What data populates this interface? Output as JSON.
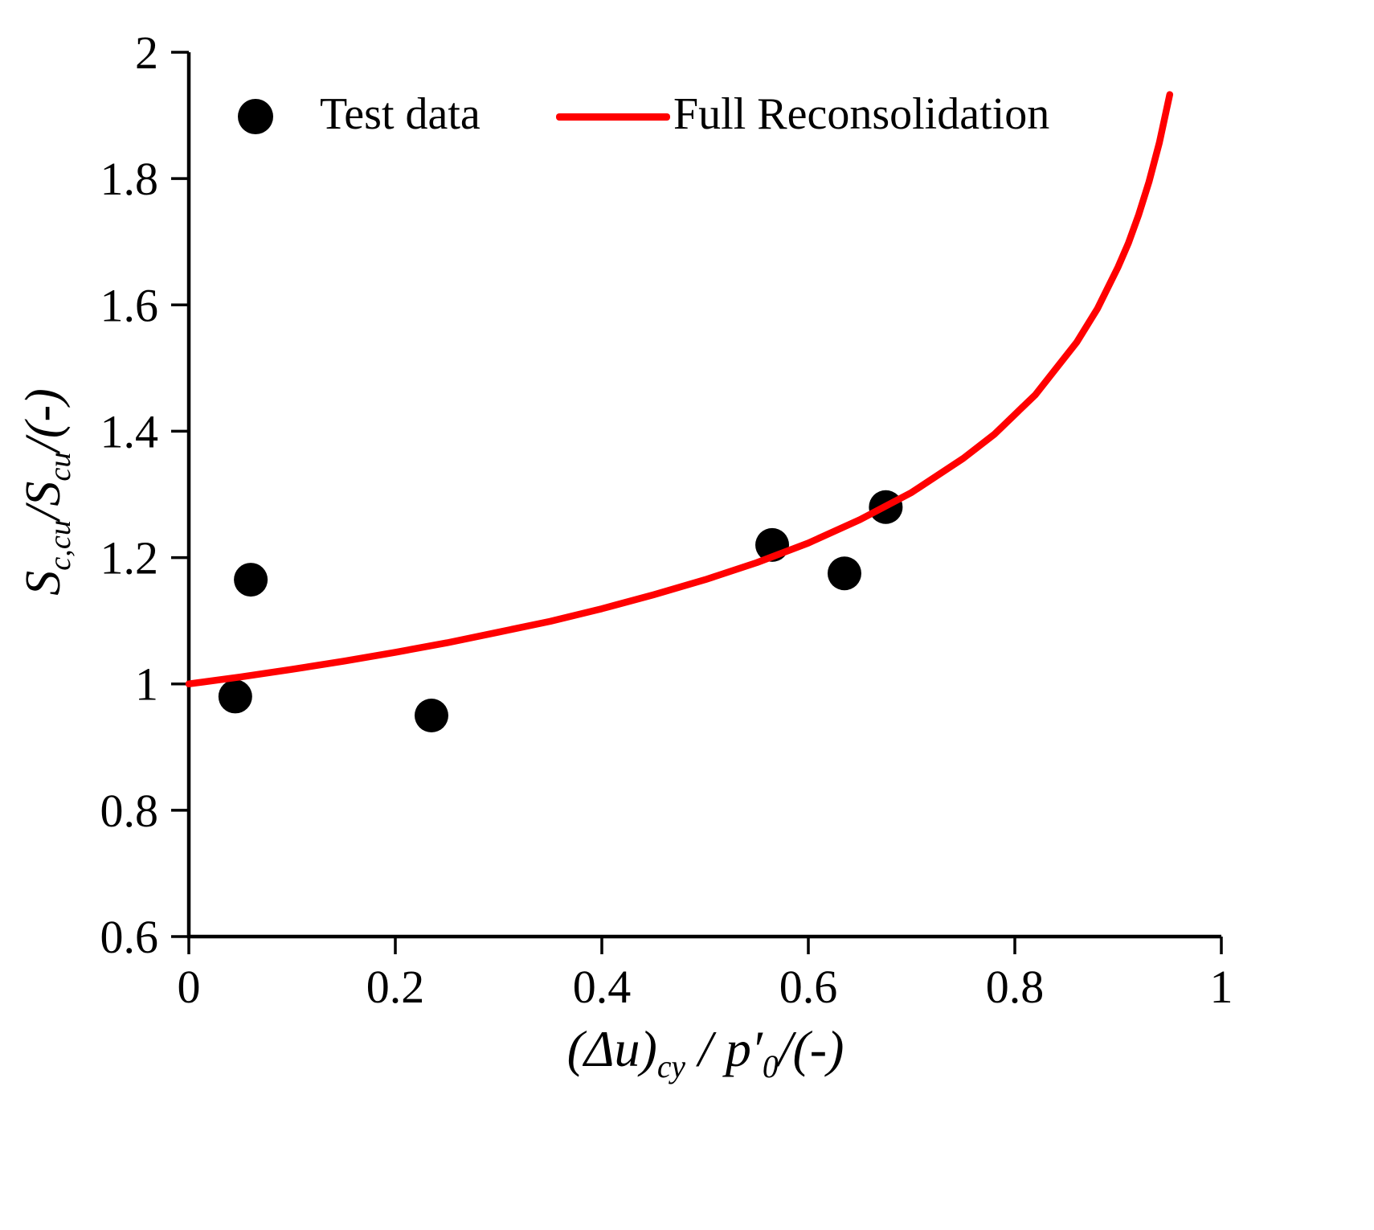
{
  "chart_data": {
    "type": "scatter",
    "title": "",
    "xlabel": "(Δu)_cy / p′0/(-)",
    "ylabel": "S_c,cu/S_cu/(-)",
    "xlim": [
      0,
      1
    ],
    "ylim": [
      0.6,
      2
    ],
    "xticks": [
      0,
      0.2,
      0.4,
      0.6,
      0.8,
      1
    ],
    "xtick_labels": [
      "0",
      "0.2",
      "0.4",
      "0.6",
      "0.8",
      "1"
    ],
    "yticks": [
      0.6,
      0.8,
      1,
      1.2,
      1.4,
      1.6,
      1.8,
      2
    ],
    "ytick_labels": [
      "0.6",
      "0.8",
      "1",
      "1.2",
      "1.4",
      "1.6",
      "1.8",
      "2"
    ],
    "grid": false,
    "legend_position": "top-left-inside",
    "series": [
      {
        "name": "Test data",
        "type": "scatter",
        "color": "#000000",
        "marker": "circle",
        "points": [
          [
            0.045,
            0.98
          ],
          [
            0.06,
            1.165
          ],
          [
            0.235,
            0.95
          ],
          [
            0.565,
            1.22
          ],
          [
            0.635,
            1.175
          ],
          [
            0.675,
            1.28
          ]
        ]
      },
      {
        "name": "Full Reconsolidation",
        "type": "line",
        "color": "#ff0000",
        "points": [
          [
            0,
            1.0
          ],
          [
            0.05,
            1.011
          ],
          [
            0.1,
            1.023
          ],
          [
            0.15,
            1.036
          ],
          [
            0.2,
            1.05
          ],
          [
            0.25,
            1.065
          ],
          [
            0.3,
            1.082
          ],
          [
            0.35,
            1.099
          ],
          [
            0.4,
            1.119
          ],
          [
            0.45,
            1.141
          ],
          [
            0.5,
            1.165
          ],
          [
            0.55,
            1.192
          ],
          [
            0.6,
            1.223
          ],
          [
            0.65,
            1.26
          ],
          [
            0.7,
            1.303
          ],
          [
            0.75,
            1.357
          ],
          [
            0.78,
            1.395
          ],
          [
            0.82,
            1.458
          ],
          [
            0.86,
            1.541
          ],
          [
            0.88,
            1.594
          ],
          [
            0.9,
            1.66
          ],
          [
            0.91,
            1.698
          ],
          [
            0.92,
            1.743
          ],
          [
            0.93,
            1.795
          ],
          [
            0.94,
            1.857
          ],
          [
            0.95,
            1.933
          ]
        ]
      }
    ]
  },
  "legend": {
    "items": [
      {
        "label": "Test data",
        "marker_color": "#000000"
      },
      {
        "label": "Full Reconsolidation",
        "marker_color": "#ff0000"
      }
    ]
  },
  "labels": {
    "y": {
      "main1": "S",
      "sub1": "c,cu",
      "sep": "/",
      "main2": "S",
      "sub2": "cu",
      "unit": "/(-)"
    },
    "x": {
      "pre": "(Δu)",
      "sub1": "cy",
      "mid": " / p",
      "prime": "′",
      "sub2": "0",
      "unit": "/(-)"
    }
  },
  "colors": {
    "axis": "#000000",
    "scatter": "#000000",
    "line": "#ff0000",
    "background": "#ffffff"
  }
}
